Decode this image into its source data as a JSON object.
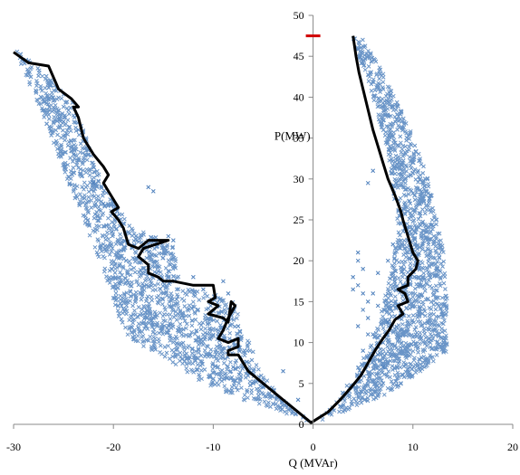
{
  "chart_data": {
    "type": "scatter",
    "title": "",
    "xlabel": "Q (MVAr)",
    "ylabel": "P(MW)",
    "xlim": [
      -30,
      20
    ],
    "ylim": [
      0,
      50
    ],
    "x_ticks": [
      -30,
      -20,
      -10,
      0,
      10,
      20
    ],
    "y_ticks": [
      0,
      5,
      10,
      15,
      20,
      25,
      30,
      35,
      40,
      45,
      50
    ],
    "x_tick_labels": [
      "-30",
      "-20",
      "-10",
      "0",
      "10",
      "20"
    ],
    "y_tick_labels": [
      "0",
      "5",
      "10",
      "15",
      "20",
      "25",
      "30",
      "35",
      "40",
      "45",
      "50"
    ],
    "grid": false,
    "legend": "none",
    "series": [
      {
        "kind": "scatter",
        "marker": "x",
        "color": "#4f81bd",
        "regions": [
          {
            "side": "left",
            "polygon": [
              [
                -30,
                46
              ],
              [
                -27.5,
                43.5
              ],
              [
                -24,
                39.5
              ],
              [
                -21,
                29
              ],
              [
                -18,
                24
              ],
              [
                -14,
                22
              ],
              [
                -13.5,
                20
              ],
              [
                -13.5,
                17
              ],
              [
                -10,
                16
              ],
              [
                -8,
                15
              ],
              [
                -7,
                12
              ],
              [
                -6,
                9
              ],
              [
                -5,
                6
              ],
              [
                -3,
                3
              ],
              [
                -1,
                1
              ],
              [
                -0.2,
                0.2
              ],
              [
                -2,
                1
              ],
              [
                -7,
                3
              ],
              [
                -11,
                5
              ],
              [
                -14,
                7.5
              ],
              [
                -17,
                9.5
              ],
              [
                -19,
                11
              ],
              [
                -21,
                19
              ],
              [
                -24,
                28
              ],
              [
                -26.5,
                36
              ],
              [
                -29,
                43
              ]
            ]
          },
          {
            "side": "right",
            "polygon": [
              [
                0.2,
                0.2
              ],
              [
                2.5,
                3
              ],
              [
                4,
                6
              ],
              [
                5.5,
                9
              ],
              [
                6.5,
                12
              ],
              [
                7.5,
                17
              ],
              [
                8.5,
                24
              ],
              [
                7.5,
                33
              ],
              [
                6,
                40
              ],
              [
                4.5,
                45
              ],
              [
                3.8,
                48
              ],
              [
                5,
                47
              ],
              [
                7,
                43
              ],
              [
                9.5,
                37
              ],
              [
                11.5,
                30
              ],
              [
                13,
                22
              ],
              [
                13.5,
                14
              ],
              [
                13.5,
                9
              ],
              [
                11,
                6.5
              ],
              [
                7,
                3.5
              ],
              [
                3,
                1.5
              ]
            ]
          }
        ],
        "outliers": [
          [
            -16.5,
            29
          ],
          [
            -16,
            28.5
          ],
          [
            -14.5,
            23
          ],
          [
            -14,
            22.5
          ],
          [
            -12,
            18
          ],
          [
            -11,
            16.5
          ],
          [
            -9,
            17.5
          ],
          [
            -8.5,
            16
          ],
          [
            -7.5,
            12
          ],
          [
            -8,
            7
          ],
          [
            -6,
            5
          ],
          [
            -5,
            4.5
          ],
          [
            -3,
            6.5
          ],
          [
            -1.5,
            3
          ],
          [
            -4,
            2.5
          ],
          [
            -25,
            37
          ],
          [
            -24,
            33
          ],
          [
            -22,
            29.5
          ],
          [
            -21,
            27
          ],
          [
            -23.5,
            36
          ],
          [
            5.5,
            29.5
          ],
          [
            6,
            31
          ],
          [
            4.5,
            20
          ],
          [
            4,
            18
          ],
          [
            4.5,
            17
          ],
          [
            5.5,
            15
          ],
          [
            6,
            16
          ],
          [
            5.5,
            13
          ],
          [
            6,
            11
          ],
          [
            7.5,
            12.5
          ],
          [
            7,
            10
          ],
          [
            6.5,
            8.5
          ],
          [
            7,
            7
          ],
          [
            5,
            9
          ],
          [
            5.5,
            11
          ],
          [
            4.5,
            12
          ],
          [
            5,
            14
          ],
          [
            6.5,
            14.5
          ],
          [
            5,
            16
          ],
          [
            4,
            16.5
          ],
          [
            8,
            22
          ],
          [
            7.5,
            20
          ],
          [
            6.5,
            18.5
          ],
          [
            5,
            19
          ],
          [
            4.5,
            21
          ]
        ]
      },
      {
        "kind": "line",
        "color": "#000000",
        "points": [
          [
            -30,
            45.5
          ],
          [
            -28.5,
            44.2
          ],
          [
            -26.5,
            43.8
          ],
          [
            -25.5,
            41
          ],
          [
            -24.2,
            39.8
          ],
          [
            -23.5,
            38.8
          ],
          [
            -24,
            38.8
          ],
          [
            -23.5,
            37.5
          ],
          [
            -23,
            35
          ],
          [
            -22,
            33
          ],
          [
            -21,
            31.5
          ],
          [
            -20.5,
            30.5
          ],
          [
            -21,
            29.5
          ],
          [
            -20.5,
            28.5
          ],
          [
            -20,
            27.5
          ],
          [
            -19.5,
            26.5
          ],
          [
            -20.2,
            26
          ],
          [
            -19.5,
            25
          ],
          [
            -19,
            24
          ],
          [
            -18.5,
            22
          ],
          [
            -17.5,
            21.5
          ],
          [
            -16.5,
            22.5
          ],
          [
            -14.5,
            22.5
          ],
          [
            -17,
            21.5
          ],
          [
            -17.5,
            20.5
          ],
          [
            -16.5,
            19.5
          ],
          [
            -16.5,
            18.5
          ],
          [
            -15.5,
            18
          ],
          [
            -15,
            17.5
          ],
          [
            -14,
            17.5
          ],
          [
            -12,
            17
          ],
          [
            -10,
            17
          ],
          [
            -9.8,
            15.5
          ],
          [
            -10.5,
            15
          ],
          [
            -9.5,
            14.5
          ],
          [
            -10.5,
            13.5
          ],
          [
            -9,
            13
          ],
          [
            -8.5,
            12.5
          ],
          [
            -8.2,
            15
          ],
          [
            -7.8,
            14.5
          ],
          [
            -8.5,
            13
          ],
          [
            -9,
            11.5
          ],
          [
            -9.5,
            10.5
          ],
          [
            -8.5,
            10
          ],
          [
            -7.5,
            10.5
          ],
          [
            -7.5,
            9.5
          ],
          [
            -8.5,
            9
          ],
          [
            -8.5,
            8.5
          ],
          [
            -7.5,
            8.5
          ],
          [
            -6.5,
            6.5
          ],
          [
            -5,
            5
          ],
          [
            -3,
            3
          ],
          [
            -1.5,
            1.5
          ],
          [
            -0.2,
            0.2
          ],
          [
            1.5,
            1.5
          ],
          [
            2.7,
            3
          ],
          [
            3.8,
            4.5
          ],
          [
            4.8,
            6
          ],
          [
            5.5,
            7.5
          ],
          [
            6.2,
            9
          ],
          [
            7,
            10.5
          ],
          [
            7.6,
            11.5
          ],
          [
            8.2,
            12.8
          ],
          [
            9,
            13.5
          ],
          [
            8.5,
            14.5
          ],
          [
            9.5,
            15
          ],
          [
            9.2,
            16
          ],
          [
            8.5,
            16.5
          ],
          [
            9.5,
            17
          ],
          [
            9.5,
            18
          ],
          [
            10.3,
            19
          ],
          [
            10.5,
            20
          ],
          [
            10,
            21
          ],
          [
            9.5,
            23
          ],
          [
            9,
            25
          ],
          [
            8.8,
            26
          ],
          [
            8.2,
            28
          ],
          [
            7.5,
            30
          ],
          [
            7,
            32
          ],
          [
            6.5,
            34
          ],
          [
            6,
            36
          ],
          [
            5.5,
            38.5
          ],
          [
            5,
            41
          ],
          [
            4.6,
            43
          ],
          [
            4.3,
            45
          ],
          [
            4,
            47.5
          ]
        ]
      },
      {
        "kind": "marker",
        "color": "#d00000",
        "point": [
          0,
          47.5
        ]
      }
    ]
  }
}
